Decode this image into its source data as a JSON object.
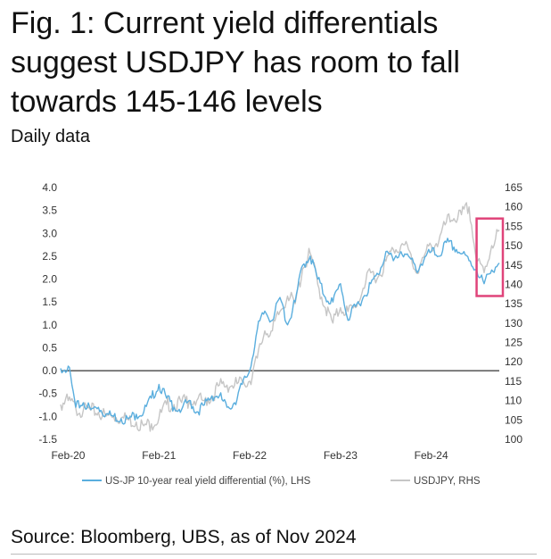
{
  "header": {
    "title": "Fig. 1: Current yield differentials suggest USDJPY has room to fall towards 145-146 levels",
    "subtitle": "Daily data"
  },
  "footer": {
    "source": "Source: Bloomberg, UBS, as of Nov 2024"
  },
  "colors": {
    "lhs_series": "#5aaede",
    "rhs_series": "#c6c6c6",
    "highlight_box": "#e0447a",
    "zero_line": "#333333"
  },
  "chart_data": {
    "type": "line",
    "title": "",
    "xlabel": "",
    "ylabel": "",
    "x_ticks": [
      "Feb-20",
      "Feb-21",
      "Feb-22",
      "Feb-23",
      "Feb-24"
    ],
    "x_range": [
      "2020-01",
      "2024-11"
    ],
    "ylim_left": [
      -1.5,
      4.0
    ],
    "y_ticks_left": [
      "4.0",
      "3.5",
      "3.0",
      "2.5",
      "2.0",
      "1.5",
      "1.0",
      "0.5",
      "0.0",
      "-0.5",
      "-1.0",
      "-1.5"
    ],
    "ylim_right": [
      100,
      165
    ],
    "y_ticks_right": [
      "165",
      "160",
      "155",
      "150",
      "145",
      "140",
      "135",
      "130",
      "125",
      "120",
      "115",
      "110",
      "105",
      "100"
    ],
    "grid": false,
    "legend": "bottom",
    "annotations": [
      {
        "type": "box",
        "description": "highlight of recent period",
        "x_range": [
          "2024-08",
          "2024-11"
        ],
        "y_range_right": [
          137,
          157
        ]
      }
    ],
    "series": [
      {
        "name": "US-JP 10-year real yield differential (%), LHS",
        "axis": "left",
        "x": [
          "2020-01",
          "2020-02",
          "2020-03",
          "2020-04",
          "2020-05",
          "2020-06",
          "2020-07",
          "2020-08",
          "2020-09",
          "2020-10",
          "2020-11",
          "2020-12",
          "2021-01",
          "2021-02",
          "2021-03",
          "2021-04",
          "2021-05",
          "2021-06",
          "2021-07",
          "2021-08",
          "2021-09",
          "2021-10",
          "2021-11",
          "2021-12",
          "2022-01",
          "2022-02",
          "2022-03",
          "2022-04",
          "2022-05",
          "2022-06",
          "2022-07",
          "2022-08",
          "2022-09",
          "2022-10",
          "2022-11",
          "2022-12",
          "2023-01",
          "2023-02",
          "2023-03",
          "2023-04",
          "2023-05",
          "2023-06",
          "2023-07",
          "2023-08",
          "2023-09",
          "2023-10",
          "2023-11",
          "2023-12",
          "2024-01",
          "2024-02",
          "2024-03",
          "2024-04",
          "2024-05",
          "2024-06",
          "2024-07",
          "2024-08",
          "2024-09",
          "2024-10",
          "2024-11"
        ],
        "values": [
          0.05,
          0.1,
          -0.8,
          -0.7,
          -0.85,
          -0.8,
          -0.95,
          -1.0,
          -1.05,
          -1.05,
          -0.95,
          -0.9,
          -0.6,
          -0.3,
          -0.6,
          -0.8,
          -0.85,
          -0.65,
          -0.9,
          -0.75,
          -0.55,
          -0.55,
          -0.8,
          -0.7,
          -0.3,
          0.0,
          0.9,
          1.3,
          1.1,
          1.6,
          1.0,
          1.5,
          2.3,
          2.5,
          2.0,
          1.6,
          1.5,
          1.9,
          1.1,
          1.4,
          1.6,
          1.9,
          2.1,
          2.6,
          2.4,
          2.6,
          2.5,
          2.2,
          2.4,
          2.6,
          2.5,
          2.8,
          2.7,
          2.55,
          2.4,
          2.2,
          1.9,
          2.2,
          2.35
        ]
      },
      {
        "name": "USDJPY, RHS",
        "axis": "right",
        "x": [
          "2020-01",
          "2020-02",
          "2020-03",
          "2020-04",
          "2020-05",
          "2020-06",
          "2020-07",
          "2020-08",
          "2020-09",
          "2020-10",
          "2020-11",
          "2020-12",
          "2021-01",
          "2021-02",
          "2021-03",
          "2021-04",
          "2021-05",
          "2021-06",
          "2021-07",
          "2021-08",
          "2021-09",
          "2021-10",
          "2021-11",
          "2021-12",
          "2022-01",
          "2022-02",
          "2022-03",
          "2022-04",
          "2022-05",
          "2022-06",
          "2022-07",
          "2022-08",
          "2022-09",
          "2022-10",
          "2022-11",
          "2022-12",
          "2023-01",
          "2023-02",
          "2023-03",
          "2023-04",
          "2023-05",
          "2023-06",
          "2023-07",
          "2023-08",
          "2023-09",
          "2023-10",
          "2023-11",
          "2023-12",
          "2024-01",
          "2024-02",
          "2024-03",
          "2024-04",
          "2024-05",
          "2024-06",
          "2024-07",
          "2024-08",
          "2024-09",
          "2024-10",
          "2024-11"
        ],
        "values": [
          109,
          110,
          108,
          107.5,
          107.5,
          107,
          106,
          106,
          105.5,
          105,
          104.5,
          103.5,
          104,
          105.5,
          109,
          109,
          109.5,
          110,
          110,
          110,
          111,
          114,
          114,
          114,
          115,
          115,
          121,
          128,
          128,
          133,
          137,
          135,
          144,
          148,
          140,
          134,
          130,
          134,
          133,
          134,
          139,
          143,
          142,
          146,
          149,
          150,
          149,
          143,
          147,
          150,
          151,
          156,
          157,
          158,
          160,
          146,
          143,
          150,
          154
        ]
      }
    ]
  }
}
